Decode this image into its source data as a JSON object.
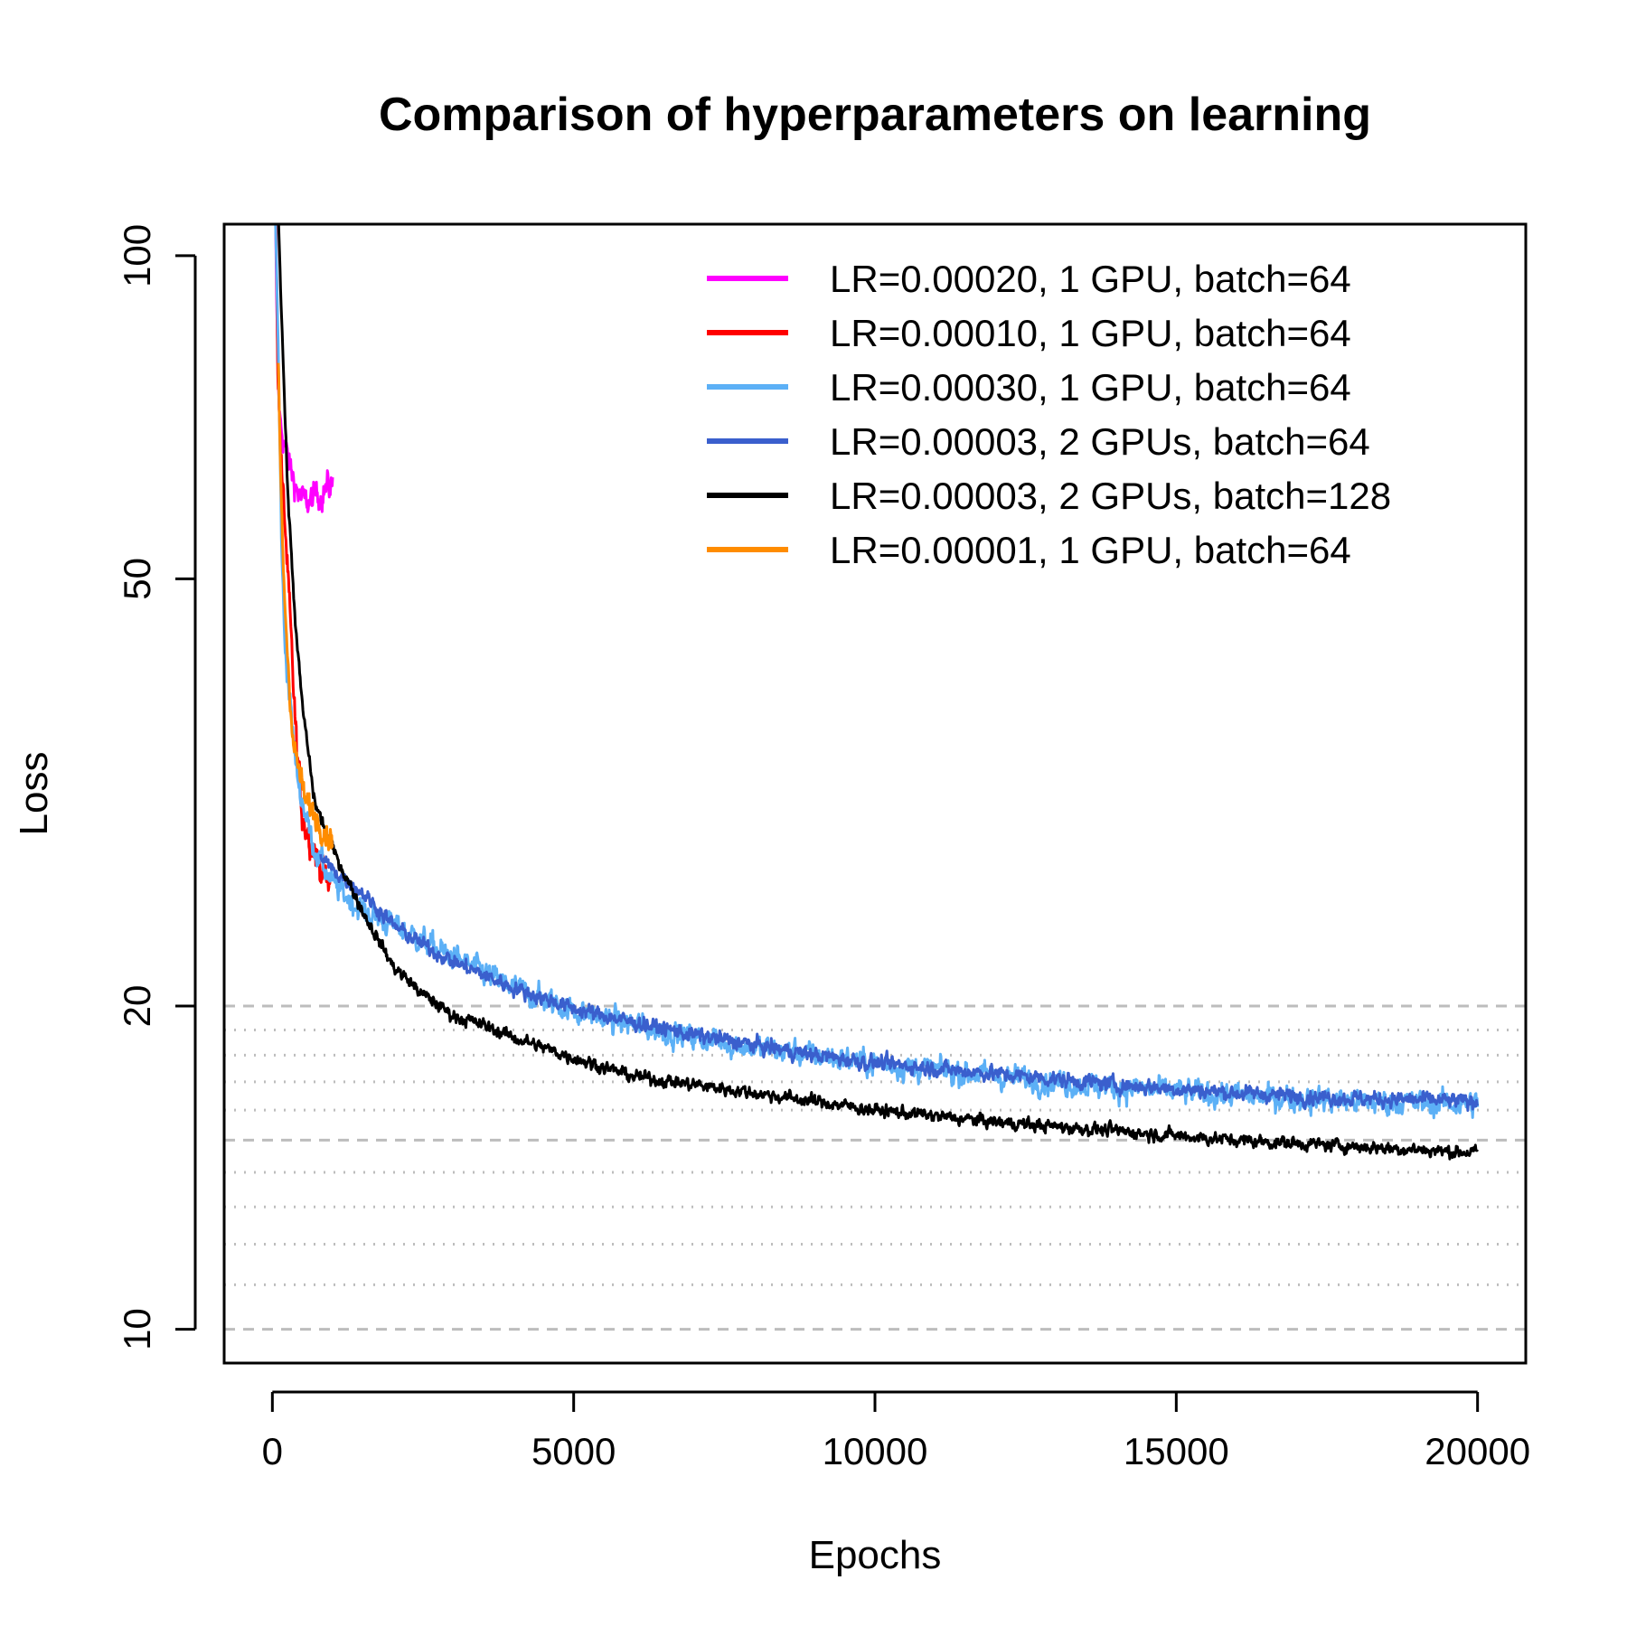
{
  "chart_data": {
    "type": "line",
    "title": "Comparison of hyperparameters on learning",
    "xlabel": "Epochs",
    "ylabel": "Loss",
    "xlim": [
      -800,
      20800
    ],
    "ylim": [
      9.3,
      107
    ],
    "y_scale": "log",
    "x_ticks": [
      0,
      5000,
      10000,
      15000,
      20000
    ],
    "x_tick_labels": [
      "0",
      "5000",
      "10000",
      "15000",
      "20000"
    ],
    "y_ticks": [
      10,
      20,
      50,
      100
    ],
    "y_tick_labels": [
      "10",
      "20",
      "50",
      "100"
    ],
    "grid": {
      "dashed": [
        10,
        15,
        20
      ],
      "dotted": [
        11,
        12,
        13,
        14,
        16,
        17,
        18,
        19
      ]
    },
    "legend_position": "top-right",
    "series": [
      {
        "name": "LR=0.00020, 1 GPU, batch=64",
        "color": "#ff00ff",
        "noise": 0.035,
        "x": [
          50,
          70,
          100,
          130,
          170,
          220,
          280,
          350,
          430,
          520,
          620,
          720,
          820,
          920,
          1000
        ],
        "y": [
          110,
          90,
          75,
          70,
          68,
          66,
          64,
          62,
          60,
          59,
          59,
          60,
          60,
          61,
          61
        ]
      },
      {
        "name": "LR=0.00010, 1 GPU, batch=64",
        "color": "#ff0000",
        "noise": 0.04,
        "x": [
          60,
          90,
          120,
          160,
          220,
          300,
          400,
          500,
          600,
          700,
          800,
          900,
          960
        ],
        "y": [
          110,
          80,
          70,
          62,
          55,
          45,
          35,
          30,
          29,
          28,
          27,
          26,
          26
        ]
      },
      {
        "name": "LR=0.00030, 1 GPU, batch=64",
        "color": "#5cb0f6",
        "noise": 0.03,
        "x": [
          50,
          100,
          150,
          200,
          300,
          400,
          500,
          700,
          1000,
          1500,
          2000,
          3000,
          4000,
          5000,
          6000,
          7000,
          8000,
          10000,
          12000,
          14000,
          16000,
          18000,
          20000
        ],
        "y": [
          110,
          80,
          55,
          44,
          38,
          33,
          31,
          28,
          26,
          24.5,
          23.8,
          22.2,
          20.8,
          19.8,
          19.2,
          18.7,
          18.3,
          17.7,
          17.2,
          16.8,
          16.5,
          16.3,
          16.2
        ]
      },
      {
        "name": "LR=0.00003, 2 GPUs, batch=64",
        "color": "#3a5fcd",
        "noise": 0.018,
        "x": [
          800,
          1000,
          1500,
          2000,
          2500,
          3000,
          4000,
          5000,
          6000,
          7000,
          8000,
          9000,
          10000,
          12000,
          14000,
          16000,
          18000,
          20000
        ],
        "y": [
          27.5,
          26.8,
          25.5,
          23.8,
          22.8,
          22,
          20.8,
          19.9,
          19.3,
          18.8,
          18.4,
          18.0,
          17.7,
          17.3,
          16.9,
          16.6,
          16.4,
          16.3
        ]
      },
      {
        "name": "LR=0.00003, 2 GPUs, batch=128",
        "color": "#000000",
        "noise": 0.015,
        "x": [
          100,
          140,
          180,
          220,
          270,
          320,
          400,
          500,
          700,
          1000,
          1500,
          2000,
          2500,
          3000,
          3500,
          4000,
          5000,
          6000,
          7000,
          8000,
          9000,
          10000,
          12000,
          14000,
          16000,
          18000,
          20000
        ],
        "y": [
          110,
          92,
          80,
          68,
          58,
          52,
          44,
          38,
          31,
          28,
          24.5,
          21.8,
          20.5,
          19.6,
          19.2,
          18.7,
          17.9,
          17.2,
          16.9,
          16.6,
          16.3,
          16.0,
          15.6,
          15.3,
          15.0,
          14.8,
          14.6
        ]
      },
      {
        "name": "LR=0.00001, 1 GPU, batch=64",
        "color": "#ff8c00",
        "noise": 0.03,
        "x": [
          100,
          130,
          170,
          220,
          280,
          350,
          450,
          550,
          650,
          750,
          850,
          950,
          1000
        ],
        "y": [
          80,
          65,
          53,
          46,
          40,
          35,
          33,
          31,
          30.5,
          29.8,
          29.2,
          28.8,
          28.5
        ]
      }
    ]
  }
}
